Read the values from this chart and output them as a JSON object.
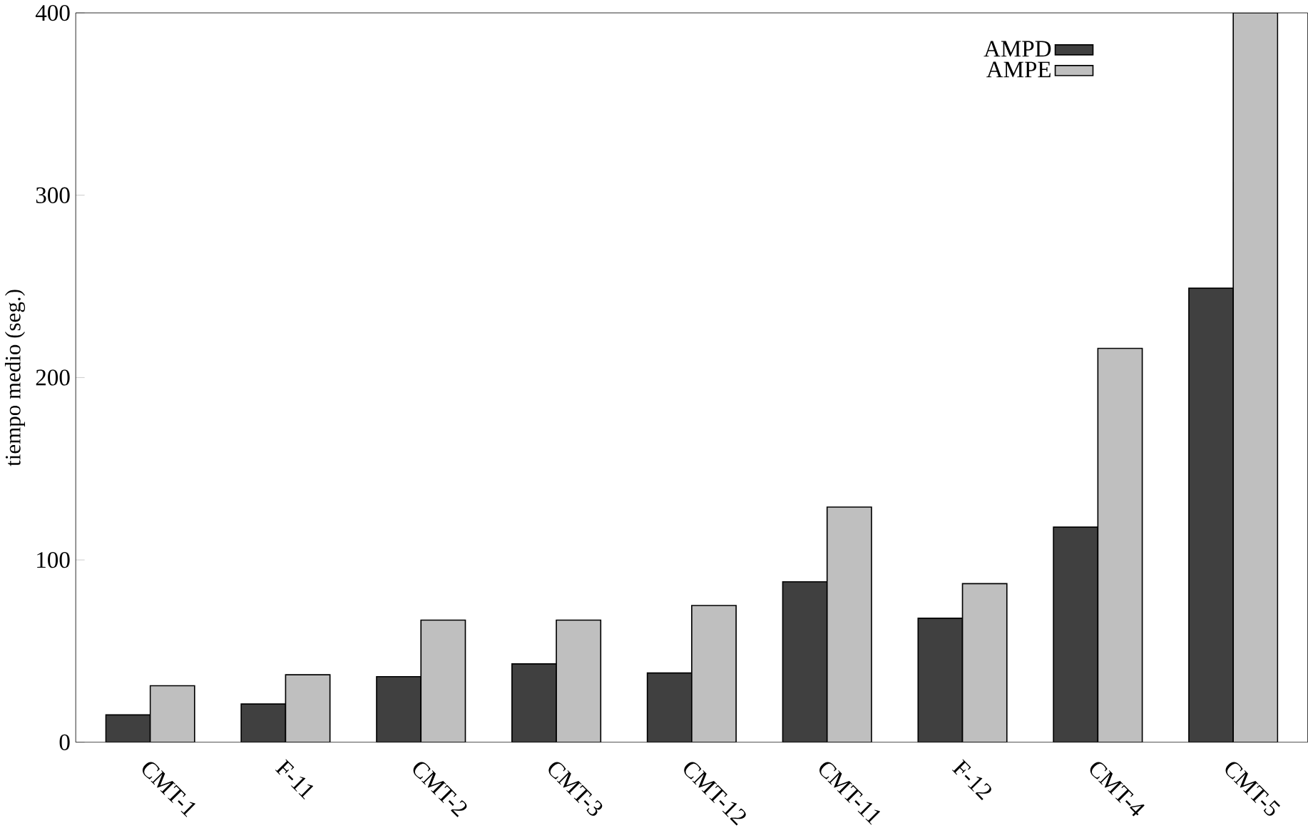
{
  "chart_data": {
    "type": "bar",
    "ylabel": "tiempo medio (seg.)",
    "categories": [
      "CMT-1",
      "F-11",
      "CMT-2",
      "CMT-3",
      "CMT-12",
      "CMT-11",
      "F-12",
      "CMT-4",
      "CMT-5"
    ],
    "series": [
      {
        "name": "AMPD",
        "color": "#404040",
        "values": [
          15,
          21,
          36,
          43,
          38,
          88,
          68,
          118,
          249
        ]
      },
      {
        "name": "AMPE",
        "color": "#bfbfbf",
        "values": [
          31,
          37,
          67,
          67,
          75,
          129,
          87,
          216,
          400
        ]
      }
    ],
    "ylim": [
      0,
      400
    ],
    "yticks": [
      0,
      100,
      200,
      300,
      400
    ],
    "grid": false,
    "legend": "top right"
  }
}
